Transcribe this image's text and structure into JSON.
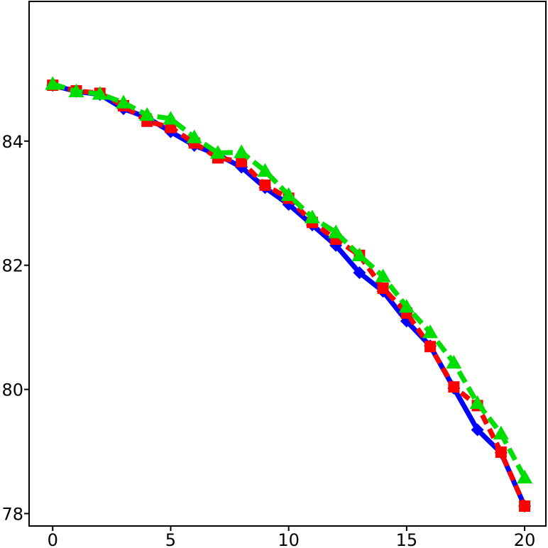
{
  "chart_data": {
    "type": "line",
    "title": "",
    "xlabel": "",
    "ylabel": "",
    "xlim": [
      -1,
      20.9
    ],
    "ylim": [
      77.8,
      86.25
    ],
    "x_ticks": [
      0,
      5,
      10,
      15,
      20
    ],
    "x_tick_labels": [
      "0",
      "5",
      "10",
      "15",
      "20"
    ],
    "y_ticks": [
      78,
      80,
      82,
      84
    ],
    "y_tick_labels": [
      "78",
      "80",
      "82",
      "84"
    ],
    "grid": false,
    "legend": "none",
    "series": [
      {
        "color": "#0000ff",
        "line_style": "solid",
        "marker": "diamond",
        "x": [
          0,
          1,
          2,
          3,
          4,
          5,
          6,
          7,
          8,
          9,
          10,
          11,
          12,
          13,
          14,
          15,
          16,
          17,
          18,
          19,
          20
        ],
        "y": [
          84.9,
          84.8,
          84.75,
          84.52,
          84.38,
          84.15,
          83.93,
          83.78,
          83.58,
          83.25,
          82.98,
          82.65,
          82.32,
          81.88,
          81.58,
          81.1,
          80.7,
          80.02,
          79.35,
          78.98,
          78.12
        ]
      },
      {
        "color": "#ff0000",
        "line_style": "dashed",
        "marker": "square",
        "x": [
          0,
          1,
          2,
          3,
          4,
          5,
          6,
          7,
          8,
          9,
          10,
          11,
          12,
          13,
          14,
          15,
          16,
          17,
          18,
          19,
          20
        ],
        "y": [
          84.9,
          84.81,
          84.77,
          84.57,
          84.32,
          84.22,
          83.97,
          83.73,
          83.67,
          83.29,
          83.08,
          82.69,
          82.42,
          82.16,
          81.63,
          81.23,
          80.69,
          80.04,
          79.74,
          78.99,
          78.12
        ]
      },
      {
        "color": "#00dd00",
        "line_style": "dashed",
        "marker": "triangle",
        "x": [
          0,
          1,
          2,
          3,
          4,
          5,
          6,
          7,
          8,
          9,
          10,
          11,
          12,
          13,
          14,
          15,
          16,
          17,
          18,
          19,
          20
        ],
        "y": [
          84.92,
          84.8,
          84.76,
          84.62,
          84.42,
          84.36,
          84.06,
          83.81,
          83.82,
          83.52,
          83.13,
          82.77,
          82.53,
          82.16,
          81.82,
          81.33,
          80.92,
          80.43,
          79.78,
          79.29,
          78.58
        ]
      }
    ]
  }
}
